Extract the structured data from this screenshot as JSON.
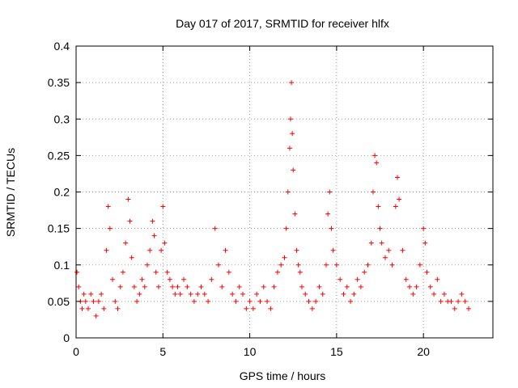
{
  "chart_data": {
    "type": "scatter",
    "title": "Day 017 of 2017, SRMTID for receiver hlfx",
    "xlabel": "GPS time / hours",
    "ylabel": "SRMTID / TECUs",
    "xlim": [
      0,
      24
    ],
    "ylim": [
      0,
      0.4
    ],
    "xticks": [
      0,
      5,
      10,
      15,
      20
    ],
    "xtick_labels": [
      "0",
      "5",
      "10",
      "15",
      "20"
    ],
    "yticks": [
      0,
      0.05,
      0.1,
      0.15,
      0.2,
      0.25,
      0.3,
      0.35,
      0.4
    ],
    "ytick_labels": [
      "0",
      "0.05",
      "0.1",
      "0.15",
      "0.2",
      "0.25",
      "0.3",
      "0.35",
      "0.4"
    ],
    "grid": true,
    "marker": "plus",
    "color": "#ff0000",
    "series": [
      {
        "name": "",
        "x": [
          0.05,
          0.15,
          0.25,
          0.35,
          0.45,
          0.55,
          0.7,
          0.85,
          1.0,
          1.15,
          1.3,
          1.45,
          1.6,
          1.75,
          1.85,
          1.95,
          2.1,
          2.25,
          2.4,
          2.55,
          2.7,
          2.85,
          3.0,
          3.1,
          3.2,
          3.35,
          3.5,
          3.65,
          3.8,
          3.95,
          4.1,
          4.25,
          4.4,
          4.5,
          4.6,
          4.75,
          4.9,
          5.0,
          5.1,
          5.25,
          5.4,
          5.55,
          5.7,
          5.85,
          6.0,
          6.2,
          6.4,
          6.6,
          6.8,
          7.0,
          7.2,
          7.4,
          7.6,
          7.8,
          8.0,
          8.2,
          8.4,
          8.6,
          8.8,
          9.0,
          9.2,
          9.4,
          9.6,
          9.8,
          10.0,
          10.2,
          10.4,
          10.6,
          10.8,
          11.0,
          11.2,
          11.4,
          11.6,
          11.8,
          12.0,
          12.1,
          12.2,
          12.3,
          12.35,
          12.4,
          12.45,
          12.5,
          12.6,
          12.7,
          12.8,
          12.9,
          13.0,
          13.2,
          13.4,
          13.6,
          13.8,
          14.0,
          14.2,
          14.4,
          14.5,
          14.6,
          14.7,
          14.8,
          15.0,
          15.2,
          15.4,
          15.6,
          15.8,
          16.0,
          16.2,
          16.4,
          16.6,
          16.8,
          17.0,
          17.1,
          17.2,
          17.3,
          17.4,
          17.5,
          17.6,
          17.8,
          18.0,
          18.2,
          18.4,
          18.5,
          18.6,
          18.8,
          19.0,
          19.2,
          19.4,
          19.6,
          19.8,
          20.0,
          20.1,
          20.2,
          20.4,
          20.6,
          20.8,
          21.0,
          21.2,
          21.4,
          21.6,
          21.8,
          22.0,
          22.2,
          22.4,
          22.6
        ],
        "y": [
          0.09,
          0.07,
          0.05,
          0.04,
          0.06,
          0.05,
          0.04,
          0.06,
          0.05,
          0.03,
          0.05,
          0.06,
          0.04,
          0.12,
          0.18,
          0.15,
          0.08,
          0.05,
          0.04,
          0.07,
          0.09,
          0.13,
          0.19,
          0.16,
          0.11,
          0.07,
          0.05,
          0.06,
          0.08,
          0.07,
          0.1,
          0.12,
          0.16,
          0.14,
          0.09,
          0.07,
          0.12,
          0.18,
          0.13,
          0.09,
          0.08,
          0.07,
          0.06,
          0.07,
          0.06,
          0.08,
          0.07,
          0.06,
          0.05,
          0.06,
          0.07,
          0.06,
          0.05,
          0.08,
          0.15,
          0.1,
          0.07,
          0.12,
          0.09,
          0.06,
          0.05,
          0.07,
          0.06,
          0.04,
          0.05,
          0.04,
          0.06,
          0.05,
          0.07,
          0.05,
          0.04,
          0.07,
          0.09,
          0.1,
          0.11,
          0.15,
          0.2,
          0.26,
          0.3,
          0.35,
          0.28,
          0.23,
          0.17,
          0.12,
          0.1,
          0.09,
          0.07,
          0.06,
          0.05,
          0.04,
          0.05,
          0.07,
          0.06,
          0.1,
          0.17,
          0.2,
          0.15,
          0.12,
          0.1,
          0.08,
          0.06,
          0.07,
          0.05,
          0.06,
          0.08,
          0.07,
          0.09,
          0.1,
          0.13,
          0.2,
          0.25,
          0.24,
          0.18,
          0.15,
          0.13,
          0.11,
          0.12,
          0.1,
          0.18,
          0.22,
          0.19,
          0.12,
          0.08,
          0.07,
          0.06,
          0.07,
          0.1,
          0.15,
          0.13,
          0.09,
          0.07,
          0.06,
          0.08,
          0.05,
          0.06,
          0.05,
          0.05,
          0.04,
          0.05,
          0.06,
          0.05,
          0.04
        ]
      }
    ]
  }
}
